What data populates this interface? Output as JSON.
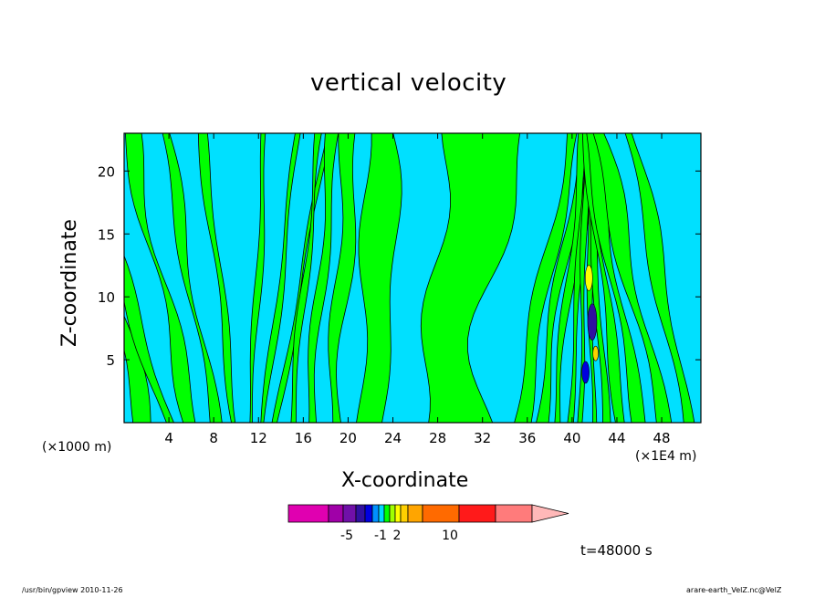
{
  "chart_data": {
    "type": "heatmap",
    "title": "vertical velocity",
    "xlabel": "X-coordinate",
    "ylabel": "Z-coordinate",
    "x_unit_label": "(×1E4 m)",
    "y_unit_label": "(×1000 m)",
    "xlim": [
      0,
      51.5
    ],
    "ylim": [
      0,
      23
    ],
    "x_ticks": [
      4,
      8,
      12,
      16,
      20,
      24,
      28,
      32,
      36,
      40,
      44,
      48
    ],
    "y_ticks": [
      5,
      10,
      15,
      20
    ],
    "colorbar": {
      "colors": [
        "#e000b0",
        "#a000a8",
        "#7010a8",
        "#3010a0",
        "#0000e0",
        "#0090ff",
        "#00d8ff",
        "#00ff00",
        "#a0ff00",
        "#ffff00",
        "#ffd000",
        "#ffa500",
        "#ff6a00",
        "#ff1a1a",
        "#ff7b7b",
        "#ffb8b8"
      ],
      "tick_labels": [
        "-5",
        "-1",
        "2",
        "10"
      ],
      "extend": "max"
    },
    "background_color": "#00e0ff",
    "positive_color": "#00ff00",
    "annotation": "t=48000 s"
  },
  "footer": {
    "left": "/usr/bin/gpview   2010-11-26",
    "right": "arare-earth_VelZ.nc@VelZ"
  }
}
